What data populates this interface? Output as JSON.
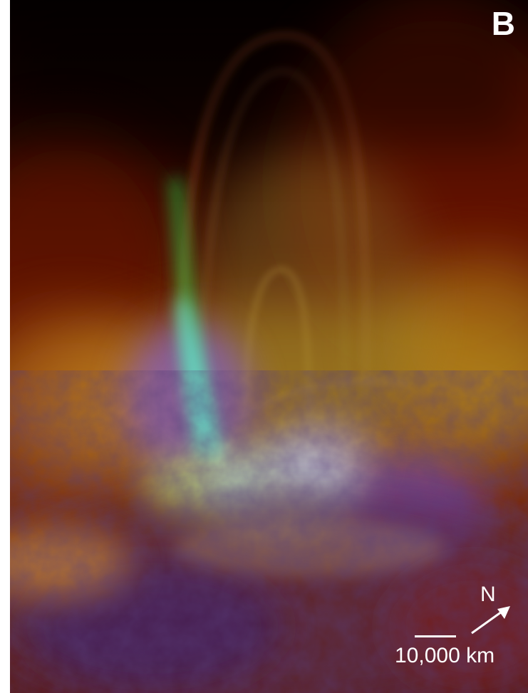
{
  "panel": {
    "label": "B"
  },
  "annotations": {
    "north_label": "N",
    "scale_label": "10,000 km"
  },
  "colors": {
    "background_dark": "#120300",
    "corona_red": "#7a1a05",
    "corona_yellow": "#c9a225",
    "jet_green": "#3fdc5a",
    "jet_cyan": "#7ff2ee",
    "plasma_violet": "#7a4cff",
    "text": "#ffffff"
  },
  "icons": {
    "north_arrow": "arrow-up-right-icon"
  }
}
